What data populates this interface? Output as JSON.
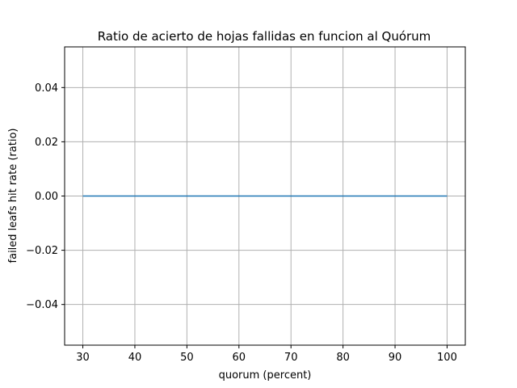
{
  "chart_data": {
    "type": "line",
    "title": "Ratio de acierto de hojas fallidas en funcion al Quórum",
    "xlabel": "quorum (percent)",
    "ylabel": "failed leafs hit rate (ratio)",
    "x": [
      30,
      40,
      50,
      60,
      70,
      80,
      90,
      100
    ],
    "series": [
      {
        "values": [
          0,
          0,
          0,
          0,
          0,
          0,
          0,
          0
        ]
      }
    ],
    "xlim": [
      26.5,
      103.5
    ],
    "ylim": [
      -0.055,
      0.055
    ],
    "xticks": [
      30,
      40,
      50,
      60,
      70,
      80,
      90,
      100
    ],
    "xtick_labels": [
      "30",
      "40",
      "50",
      "60",
      "70",
      "80",
      "90",
      "100"
    ],
    "yticks": [
      -0.04,
      -0.02,
      0.0,
      0.02,
      0.04
    ],
    "ytick_labels": [
      "−0.04",
      "−0.02",
      "0.00",
      "0.02",
      "0.04"
    ],
    "grid": true,
    "colors": {
      "line": "#1f77b4",
      "grid": "#b0b0b0",
      "axes": "#000000"
    }
  }
}
